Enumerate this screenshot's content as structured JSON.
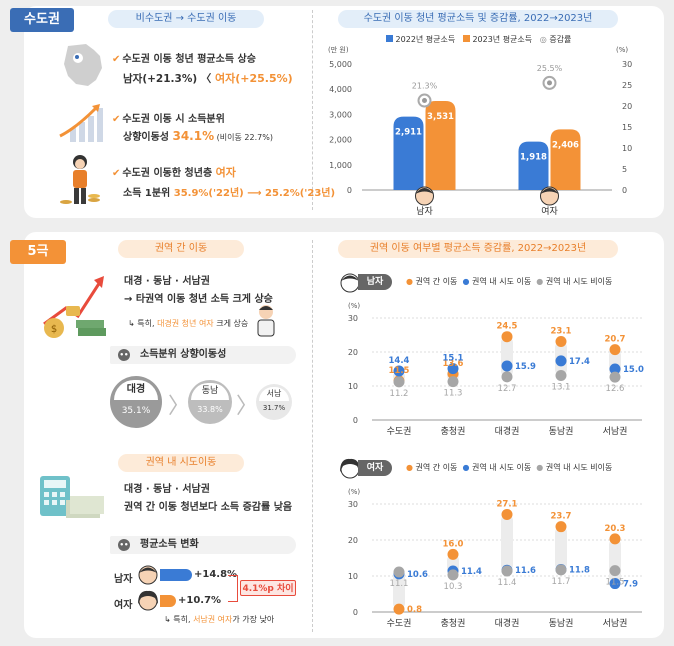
{
  "top": {
    "tag": "수도권",
    "left_pill": "비수도권 → 수도권 이동",
    "right_pill": "수도권 이동 청년 평균소득 및 증감률, 2022→2023년",
    "items": [
      {
        "line1": "수도권 이동 청년 평균소득 상승",
        "line2_pre": "남자(+21.3%) 〈 ",
        "line2_hl": "여자(+25.5%)"
      },
      {
        "line1": "수도권 이동 시 소득분위",
        "line2_pre": "상향이동성 ",
        "line2_hl": "34.1%",
        "line2_post": " (비이동 22.7%)"
      },
      {
        "line1_pre": "수도권 이동한 청년층 ",
        "line1_hl": "여자",
        "line2_pre": "소득 1분위 ",
        "line2_hl": "35.9%('22년) ⟶ 25.2%('23년)"
      }
    ],
    "legend": [
      "2022년 평균소득",
      "2023년 평균소득",
      "증감률"
    ],
    "left_unit": "(만 원)",
    "right_unit": "(%)",
    "colors": {
      "blue": "#3a7bd5",
      "orange": "#f39237",
      "gray": "#a6a6a6"
    }
  },
  "chart1": {
    "type": "bar",
    "categories": [
      "남자",
      "여자"
    ],
    "series": [
      {
        "name": "2022년 평균소득",
        "values": [
          2911,
          1918
        ]
      },
      {
        "name": "2023년 평균소득",
        "values": [
          3531,
          2406
        ]
      }
    ],
    "rate_labels": [
      "21.3%",
      "25.5%"
    ],
    "rates": [
      21.3,
      25.5
    ],
    "ylim": [
      0,
      5000
    ],
    "yticks": [
      "0",
      "1,000",
      "2,000",
      "3,000",
      "4,000",
      "5,000"
    ],
    "y2lim": [
      0,
      30
    ],
    "y2ticks": [
      "0",
      "5",
      "10",
      "15",
      "20",
      "25",
      "30"
    ],
    "bar_labels": [
      [
        "2,911",
        "3,531"
      ],
      [
        "1,918",
        "2,406"
      ]
    ]
  },
  "bottom": {
    "tag": "5극",
    "pill_a": "권역 간 이동",
    "pill_b": "권역 내 시도이동",
    "right_pill": "권역 이동 여부별 평균소득 증감률, 2022→2023년",
    "a_line1": "대경 · 동남 · 서남권",
    "a_line2": "→ 타권역 이동 청년 소득 크게 상승",
    "a_note_pre": "특히, ",
    "a_note_hl": "대경권 청년 여자",
    "a_note_post": " 크게 상승",
    "sub1": "소득분위 상향이동성",
    "circles": [
      {
        "name": "대경",
        "value": "35.1%"
      },
      {
        "name": "동남",
        "value": "33.8%"
      },
      {
        "name": "서남",
        "value": "31.7%"
      }
    ],
    "b_line1": "대경 · 동남 · 서남권",
    "b_line2": "권역 간 이동 청년보다 소득 증감률 낮음",
    "sub2": "평균소득 변화",
    "male_label": "남자",
    "female_label": "여자",
    "male_value": "+14.8%",
    "female_value": "+10.7%",
    "diff": "4.1%p 차이",
    "b_note_pre": "특히, ",
    "b_note_hl": "서남권 여자",
    "b_note_post": "가 가장 낮아"
  },
  "chart_data": [
    {
      "type": "scatter",
      "title": "남자",
      "legend": [
        "권역 간 이동",
        "권역 내 시도 이동",
        "권역 내 시도 비이동"
      ],
      "unit": "(%)",
      "categories": [
        "수도권",
        "충청권",
        "대경권",
        "동남권",
        "서남권"
      ],
      "ylim": [
        0,
        30
      ],
      "yticks": [
        "0",
        "10",
        "20",
        "30"
      ],
      "series": [
        {
          "name": "권역 간 이동",
          "values": [
            11.5,
            13.6,
            24.5,
            23.1,
            20.7
          ]
        },
        {
          "name": "권역 내 시도 이동",
          "values": [
            14.4,
            15.1,
            15.9,
            17.4,
            15.0
          ]
        },
        {
          "name": "권역 내 시도 비이동",
          "values": [
            11.2,
            11.3,
            12.7,
            13.1,
            12.6
          ]
        }
      ]
    },
    {
      "type": "scatter",
      "title": "여자",
      "legend": [
        "권역 간 이동",
        "권역 내 시도 이동",
        "권역 내 시도 비이동"
      ],
      "unit": "(%)",
      "categories": [
        "수도권",
        "충청권",
        "대경권",
        "동남권",
        "서남권"
      ],
      "ylim": [
        0,
        30
      ],
      "yticks": [
        "0",
        "10",
        "20",
        "30"
      ],
      "series": [
        {
          "name": "권역 간 이동",
          "values": [
            0.8,
            16.0,
            27.1,
            23.7,
            20.3
          ]
        },
        {
          "name": "권역 내 시도 이동",
          "values": [
            10.6,
            11.4,
            11.6,
            11.8,
            7.9
          ]
        },
        {
          "name": "권역 내 시도 비이동",
          "values": [
            11.1,
            10.3,
            11.4,
            11.7,
            11.5
          ]
        }
      ]
    }
  ]
}
